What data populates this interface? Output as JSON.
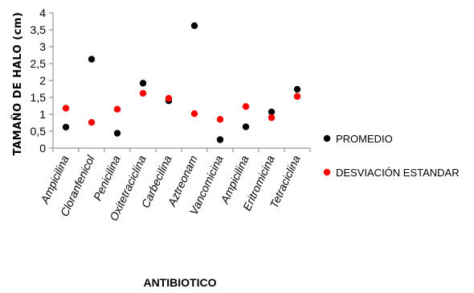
{
  "chart_data": {
    "type": "scatter",
    "title": "",
    "xlabel": "ANTIBIOTICO",
    "ylabel": "TAMAÑO DE HALO (cm)",
    "ylim": [
      0,
      4
    ],
    "yticks": [
      "0",
      "0,5",
      "1",
      "1,5",
      "2",
      "2,5",
      "3",
      "3,5",
      "4"
    ],
    "categories": [
      "Ampicilina",
      "Cloranfenicol",
      "Penicilina",
      "Oxitetraciclina",
      "Carbecilina",
      "Aztreonam",
      "Vancomicina",
      "Ampicilina",
      "Eritromicina",
      "Tetraciclina"
    ],
    "grid": false,
    "legend_position": "right",
    "series": [
      {
        "name": "PROMEDIO",
        "color": "#000000",
        "values": [
          0.62,
          2.63,
          0.44,
          1.92,
          1.4,
          3.62,
          0.25,
          0.63,
          1.07,
          1.74
        ]
      },
      {
        "name": "DESVIACIÓN ESTANDAR",
        "color": "#ff0000",
        "values": [
          1.18,
          0.76,
          1.15,
          1.62,
          1.47,
          1.02,
          0.85,
          1.23,
          0.9,
          1.53
        ]
      }
    ]
  }
}
